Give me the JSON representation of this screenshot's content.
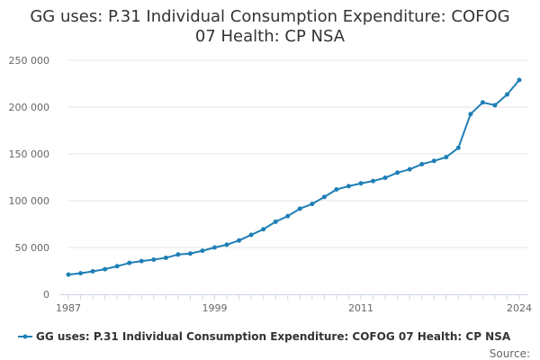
{
  "chart_data": {
    "type": "line",
    "title_lines": [
      "GG uses: P.31 Individual Consumption Expenditure: COFOG",
      "07 Health: CP NSA"
    ],
    "xlabel": "",
    "ylabel": "",
    "xlim": [
      1987,
      2024
    ],
    "ylim": [
      0,
      250000
    ],
    "x_ticks": [
      1987,
      1999,
      2011,
      2024
    ],
    "y_ticks": [
      {
        "value": 0,
        "label": "0"
      },
      {
        "value": 50000,
        "label": "50 000"
      },
      {
        "value": 100000,
        "label": "100 000"
      },
      {
        "value": 150000,
        "label": "150 000"
      },
      {
        "value": 200000,
        "label": "200 000"
      },
      {
        "value": 250000,
        "label": "250 000"
      }
    ],
    "grid": true,
    "legend_position": "bottom",
    "series": [
      {
        "name": "GG uses: P.31 Individual Consumption Expenditure: COFOG 07 Health: CP NSA",
        "color": "#1f7fb6",
        "x": [
          1987,
          1988,
          1989,
          1990,
          1991,
          1992,
          1993,
          1994,
          1995,
          1996,
          1997,
          1998,
          1999,
          2000,
          2001,
          2002,
          2003,
          2004,
          2005,
          2006,
          2007,
          2008,
          2009,
          2010,
          2011,
          2012,
          2013,
          2014,
          2015,
          2016,
          2017,
          2018,
          2019,
          2020,
          2021,
          2022,
          2023,
          2024
        ],
        "values": [
          21000,
          22500,
          24500,
          26800,
          30000,
          33500,
          35500,
          37000,
          39000,
          42500,
          43500,
          46500,
          50000,
          53000,
          57500,
          63500,
          69500,
          77500,
          83500,
          91500,
          96500,
          104000,
          112000,
          115500,
          118500,
          121000,
          124500,
          130000,
          133500,
          139000,
          142500,
          146500,
          156500,
          192500,
          205000,
          202000,
          213500,
          229000
        ]
      }
    ],
    "source_label": "Source:"
  }
}
